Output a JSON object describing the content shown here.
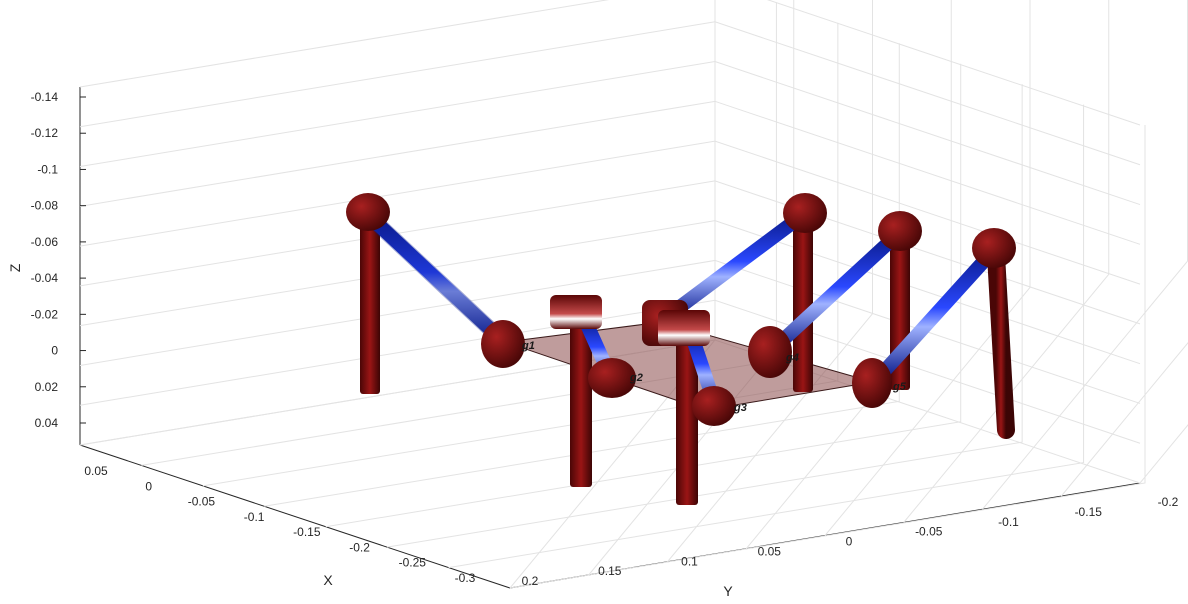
{
  "chart_data": {
    "type": "3d-plot",
    "xlabel": "X",
    "ylabel": "Y",
    "zlabel": "Z",
    "x_ticks": [
      "0.05",
      "0",
      "-0.05",
      "-0.1",
      "-0.15",
      "-0.2",
      "-0.25",
      "-0.3"
    ],
    "y_ticks": [
      "0.2",
      "0.15",
      "0.1",
      "0.05",
      "0",
      "-0.05",
      "-0.1",
      "-0.15",
      "-0.2"
    ],
    "z_ticks": [
      "-0.14",
      "-0.12",
      "-0.1",
      "-0.08",
      "-0.06",
      "-0.04",
      "-0.02",
      "0",
      "0.02",
      "0.04"
    ],
    "z_direction": "reversed",
    "grid": true,
    "box": "open",
    "leg_labels": [
      "g1",
      "g2",
      "g3",
      "g4",
      "g5"
    ],
    "colors": {
      "link": "#1f34d6",
      "joint": "#7a0d0d",
      "platform": "#8a4a4a",
      "grid": "#e3e3e3"
    }
  }
}
